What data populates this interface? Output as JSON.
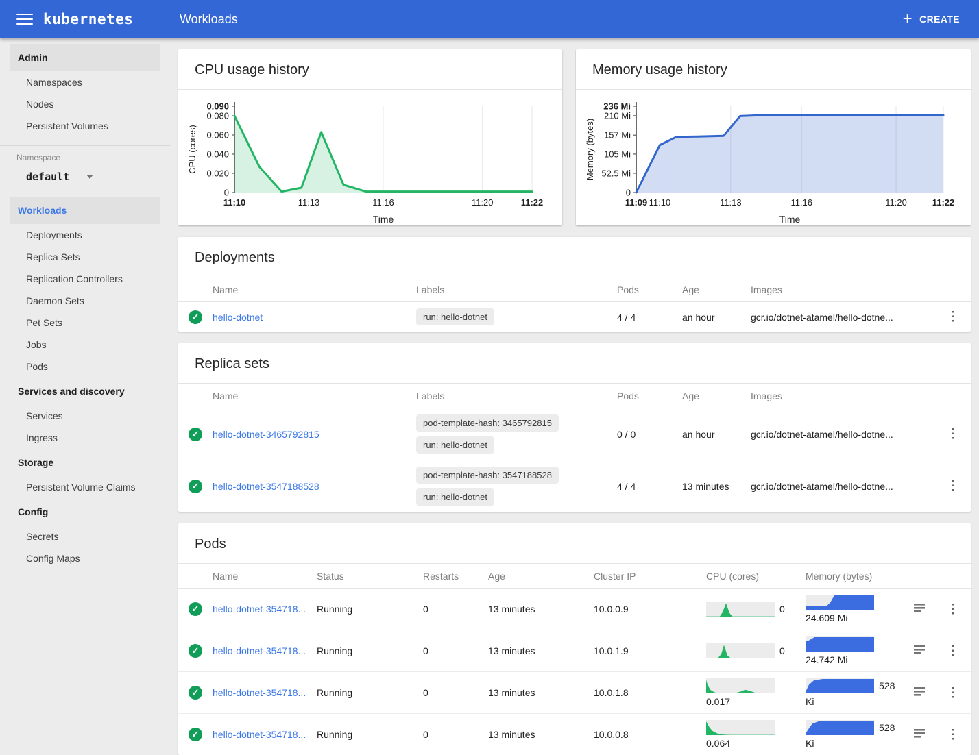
{
  "app_bar": {
    "brand": "kubernetes",
    "title": "Workloads",
    "create_label": "CREATE"
  },
  "colors": {
    "header_bg": "#3367d6",
    "link_blue": "#3b78e7",
    "check_green": "#0f9d58",
    "cpu_line": "#22b564",
    "cpu_fill": "rgba(34,181,100,0.18)",
    "mem_line": "#3366cc",
    "mem_fill": "rgba(51,102,204,0.22)",
    "spark_bg": "#ececec",
    "cpu_spark": "#22b564",
    "mem_spark": "#3b6de0"
  },
  "sidebar": {
    "entries": [
      {
        "type": "section",
        "label": "Admin",
        "highlight": true
      },
      {
        "type": "item",
        "label": "Namespaces"
      },
      {
        "type": "item",
        "label": "Nodes"
      },
      {
        "type": "item",
        "label": "Persistent Volumes"
      },
      {
        "type": "divider"
      },
      {
        "type": "caption",
        "label": "Namespace"
      },
      {
        "type": "select",
        "value": "default"
      },
      {
        "type": "section",
        "label": "Workloads",
        "highlight": true,
        "active": true
      },
      {
        "type": "item",
        "label": "Deployments"
      },
      {
        "type": "item",
        "label": "Replica Sets"
      },
      {
        "type": "item",
        "label": "Replication Controllers"
      },
      {
        "type": "item",
        "label": "Daemon Sets"
      },
      {
        "type": "item",
        "label": "Pet Sets"
      },
      {
        "type": "item",
        "label": "Jobs"
      },
      {
        "type": "item",
        "label": "Pods"
      },
      {
        "type": "section",
        "label": "Services and discovery"
      },
      {
        "type": "item",
        "label": "Services"
      },
      {
        "type": "item",
        "label": "Ingress"
      },
      {
        "type": "section",
        "label": "Storage"
      },
      {
        "type": "item",
        "label": "Persistent Volume Claims"
      },
      {
        "type": "section",
        "label": "Config"
      },
      {
        "type": "item",
        "label": "Secrets"
      },
      {
        "type": "item",
        "label": "Config Maps"
      }
    ]
  },
  "chart_data": [
    {
      "id": "cpu-chart",
      "type": "area",
      "title": "CPU usage history",
      "xlabel": "Time",
      "ylabel": "CPU (cores)",
      "x_range": [
        0,
        12
      ],
      "y_range": [
        0,
        0.09
      ],
      "x_ticks": [
        {
          "label": "11:10",
          "x": 0,
          "bold": true
        },
        {
          "label": "11:13",
          "x": 3
        },
        {
          "label": "11:16",
          "x": 6
        },
        {
          "label": "11:20",
          "x": 10
        },
        {
          "label": "11:22",
          "x": 12,
          "bold": true
        }
      ],
      "y_ticks": [
        {
          "label": "0",
          "y": 0
        },
        {
          "label": "0.020",
          "y": 0.02
        },
        {
          "label": "0.040",
          "y": 0.04
        },
        {
          "label": "0.060",
          "y": 0.06
        },
        {
          "label": "0.080",
          "y": 0.08
        },
        {
          "label": "0.090",
          "y": 0.09,
          "bold": true
        }
      ],
      "points": [
        [
          0,
          0.08
        ],
        [
          1,
          0.027
        ],
        [
          1.9,
          0.001
        ],
        [
          2.7,
          0.005
        ],
        [
          3.5,
          0.063
        ],
        [
          4.4,
          0.008
        ],
        [
          5.3,
          0.001
        ],
        [
          12,
          0.001
        ]
      ],
      "line_color": "#22b564",
      "fill_color": "rgba(34,181,100,0.18)",
      "grid": true,
      "legend": "none"
    },
    {
      "id": "mem-chart",
      "type": "area",
      "title": "Memory usage history",
      "xlabel": "Time",
      "ylabel": "Memory (bytes)",
      "x_range": [
        0,
        13
      ],
      "y_range": [
        0,
        236
      ],
      "x_ticks": [
        {
          "label": "11:09",
          "x": 0,
          "bold": true
        },
        {
          "label": "11:10",
          "x": 1
        },
        {
          "label": "11:13",
          "x": 4
        },
        {
          "label": "11:16",
          "x": 7
        },
        {
          "label": "11:20",
          "x": 11
        },
        {
          "label": "11:22",
          "x": 13,
          "bold": true
        }
      ],
      "y_ticks": [
        {
          "label": "0",
          "y": 0
        },
        {
          "label": "52.5 Mi",
          "y": 52.5
        },
        {
          "label": "105 Mi",
          "y": 105
        },
        {
          "label": "157 Mi",
          "y": 157
        },
        {
          "label": "210 Mi",
          "y": 210
        },
        {
          "label": "236 Mi",
          "y": 236,
          "bold": true
        }
      ],
      "points": [
        [
          0,
          0
        ],
        [
          1,
          130
        ],
        [
          1.7,
          152
        ],
        [
          2.6,
          153
        ],
        [
          3.7,
          155
        ],
        [
          4.4,
          209
        ],
        [
          5.2,
          211
        ],
        [
          13,
          211
        ]
      ],
      "line_color": "#3366cc",
      "fill_color": "rgba(51,102,204,0.22)",
      "grid": true,
      "legend": "none"
    }
  ],
  "deployments": {
    "title": "Deployments",
    "headers": [
      "Name",
      "Labels",
      "Pods",
      "Age",
      "Images"
    ],
    "rows": [
      {
        "name": "hello-dotnet",
        "labels": [
          "run: hello-dotnet"
        ],
        "pods": "4 / 4",
        "age": "an hour",
        "images": "gcr.io/dotnet-atamel/hello-dotne..."
      }
    ]
  },
  "replica_sets": {
    "title": "Replica sets",
    "headers": [
      "Name",
      "Labels",
      "Pods",
      "Age",
      "Images"
    ],
    "rows": [
      {
        "name": "hello-dotnet-3465792815",
        "labels": [
          "pod-template-hash: 3465792815",
          "run: hello-dotnet"
        ],
        "pods": "0 / 0",
        "age": "an hour",
        "images": "gcr.io/dotnet-atamel/hello-dotne..."
      },
      {
        "name": "hello-dotnet-3547188528",
        "labels": [
          "pod-template-hash: 3547188528",
          "run: hello-dotnet"
        ],
        "pods": "4 / 4",
        "age": "13 minutes",
        "images": "gcr.io/dotnet-atamel/hello-dotne..."
      }
    ]
  },
  "pods": {
    "title": "Pods",
    "headers": [
      "Name",
      "Status",
      "Restarts",
      "Age",
      "Cluster IP",
      "CPU (cores)",
      "Memory (bytes)"
    ],
    "rows": [
      {
        "name": "hello-dotnet-354718...",
        "status": "Running",
        "restarts": "0",
        "age": "13 minutes",
        "ip": "10.0.0.9",
        "cpu": {
          "beside": "0",
          "below": "",
          "spark": [
            [
              0,
              0.02
            ],
            [
              20,
              0.02
            ],
            [
              24,
              0.3
            ],
            [
              29,
              0.93
            ],
            [
              34,
              0.25
            ],
            [
              38,
              0.02
            ],
            [
              100,
              0.02
            ]
          ]
        },
        "mem": {
          "beside": "",
          "below": "24.609 Mi",
          "spark": [
            [
              0,
              0.27
            ],
            [
              31,
              0.27
            ],
            [
              36,
              0.5
            ],
            [
              42,
              1
            ],
            [
              100,
              1
            ]
          ]
        }
      },
      {
        "name": "hello-dotnet-354718...",
        "status": "Running",
        "restarts": "0",
        "age": "13 minutes",
        "ip": "10.0.1.9",
        "cpu": {
          "beside": "0",
          "below": "",
          "spark": [
            [
              0,
              0.02
            ],
            [
              17,
              0.02
            ],
            [
              22,
              0.3
            ],
            [
              26,
              0.93
            ],
            [
              31,
              0.2
            ],
            [
              36,
              0.02
            ],
            [
              100,
              0.02
            ]
          ]
        },
        "mem": {
          "beside": "",
          "below": "24.742 Mi",
          "spark": [
            [
              0,
              0.7
            ],
            [
              4,
              0.75
            ],
            [
              13,
              1
            ],
            [
              100,
              1
            ]
          ]
        }
      },
      {
        "name": "hello-dotnet-354718...",
        "status": "Running",
        "restarts": "0",
        "age": "13 minutes",
        "ip": "10.0.1.8",
        "cpu": {
          "beside": "",
          "below": "0.017",
          "spark": [
            [
              0,
              0.95
            ],
            [
              2,
              0.6
            ],
            [
              6,
              0.25
            ],
            [
              12,
              0.07
            ],
            [
              20,
              0.02
            ],
            [
              42,
              0.02
            ],
            [
              50,
              0.12
            ],
            [
              57,
              0.25
            ],
            [
              63,
              0.18
            ],
            [
              72,
              0.04
            ],
            [
              80,
              0.02
            ],
            [
              100,
              0.02
            ]
          ]
        },
        "mem": {
          "beside": "528",
          "below": "Ki",
          "spark": [
            [
              0,
              0.1
            ],
            [
              5,
              0.6
            ],
            [
              12,
              0.9
            ],
            [
              25,
              1
            ],
            [
              100,
              1
            ]
          ]
        }
      },
      {
        "name": "hello-dotnet-354718...",
        "status": "Running",
        "restarts": "0",
        "age": "13 minutes",
        "ip": "10.0.0.8",
        "cpu": {
          "beside": "",
          "below": "0.064",
          "spark": [
            [
              0,
              0.95
            ],
            [
              4,
              0.6
            ],
            [
              9,
              0.3
            ],
            [
              16,
              0.12
            ],
            [
              25,
              0.04
            ],
            [
              35,
              0.02
            ],
            [
              100,
              0.02
            ]
          ]
        },
        "mem": {
          "beside": "528",
          "below": "Ki",
          "spark": [
            [
              0,
              0.1
            ],
            [
              6,
              0.55
            ],
            [
              10,
              0.8
            ],
            [
              20,
              0.97
            ],
            [
              30,
              1
            ],
            [
              100,
              1
            ]
          ]
        }
      }
    ]
  }
}
